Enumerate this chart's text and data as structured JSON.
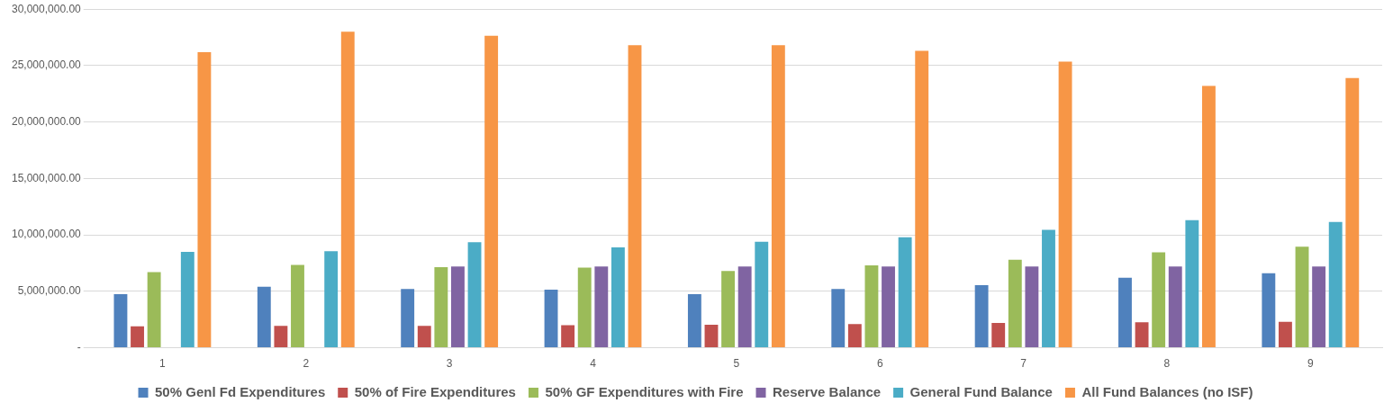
{
  "chart_data": {
    "type": "bar",
    "categories": [
      "1",
      "2",
      "3",
      "4",
      "5",
      "6",
      "7",
      "8",
      "9"
    ],
    "series": [
      {
        "name": "50% Genl Fd Expenditures",
        "color": "#4f81bd",
        "values": [
          4750000,
          5400000,
          5200000,
          5150000,
          4750000,
          5200000,
          5550000,
          6200000,
          6600000
        ]
      },
      {
        "name": "50% of Fire Expenditures",
        "color": "#c0504d",
        "values": [
          1900000,
          1950000,
          1950000,
          2000000,
          2050000,
          2100000,
          2200000,
          2250000,
          2300000
        ]
      },
      {
        "name": "50% GF Expenditures with Fire",
        "color": "#9bbb59",
        "values": [
          6700000,
          7350000,
          7150000,
          7100000,
          6800000,
          7300000,
          7800000,
          8450000,
          8950000
        ]
      },
      {
        "name": "Reserve Balance",
        "color": "#8064a2",
        "values": [
          null,
          null,
          7200000,
          7200000,
          7200000,
          7200000,
          7200000,
          7200000,
          7200000
        ]
      },
      {
        "name": "General Fund Balance",
        "color": "#4bacc6",
        "values": [
          8500000,
          8550000,
          9350000,
          8900000,
          9400000,
          9800000,
          10450000,
          11300000,
          11150000
        ]
      },
      {
        "name": "All Fund Balances (no ISF)",
        "color": "#f79646",
        "values": [
          26200000,
          28000000,
          27650000,
          26800000,
          26800000,
          26300000,
          25350000,
          23200000,
          23900000
        ]
      }
    ],
    "ylim": [
      0,
      30000000
    ],
    "yticks": [
      {
        "value": 0,
        "label": "-"
      },
      {
        "value": 5000000,
        "label": "5,000,000.00"
      },
      {
        "value": 10000000,
        "label": "10,000,000.00"
      },
      {
        "value": 15000000,
        "label": "15,000,000.00"
      },
      {
        "value": 20000000,
        "label": "20,000,000.00"
      },
      {
        "value": 25000000,
        "label": "25,000,000.00"
      },
      {
        "value": 30000000,
        "label": "30,000,000.00"
      }
    ],
    "grid": "y",
    "legend": "bottom"
  }
}
